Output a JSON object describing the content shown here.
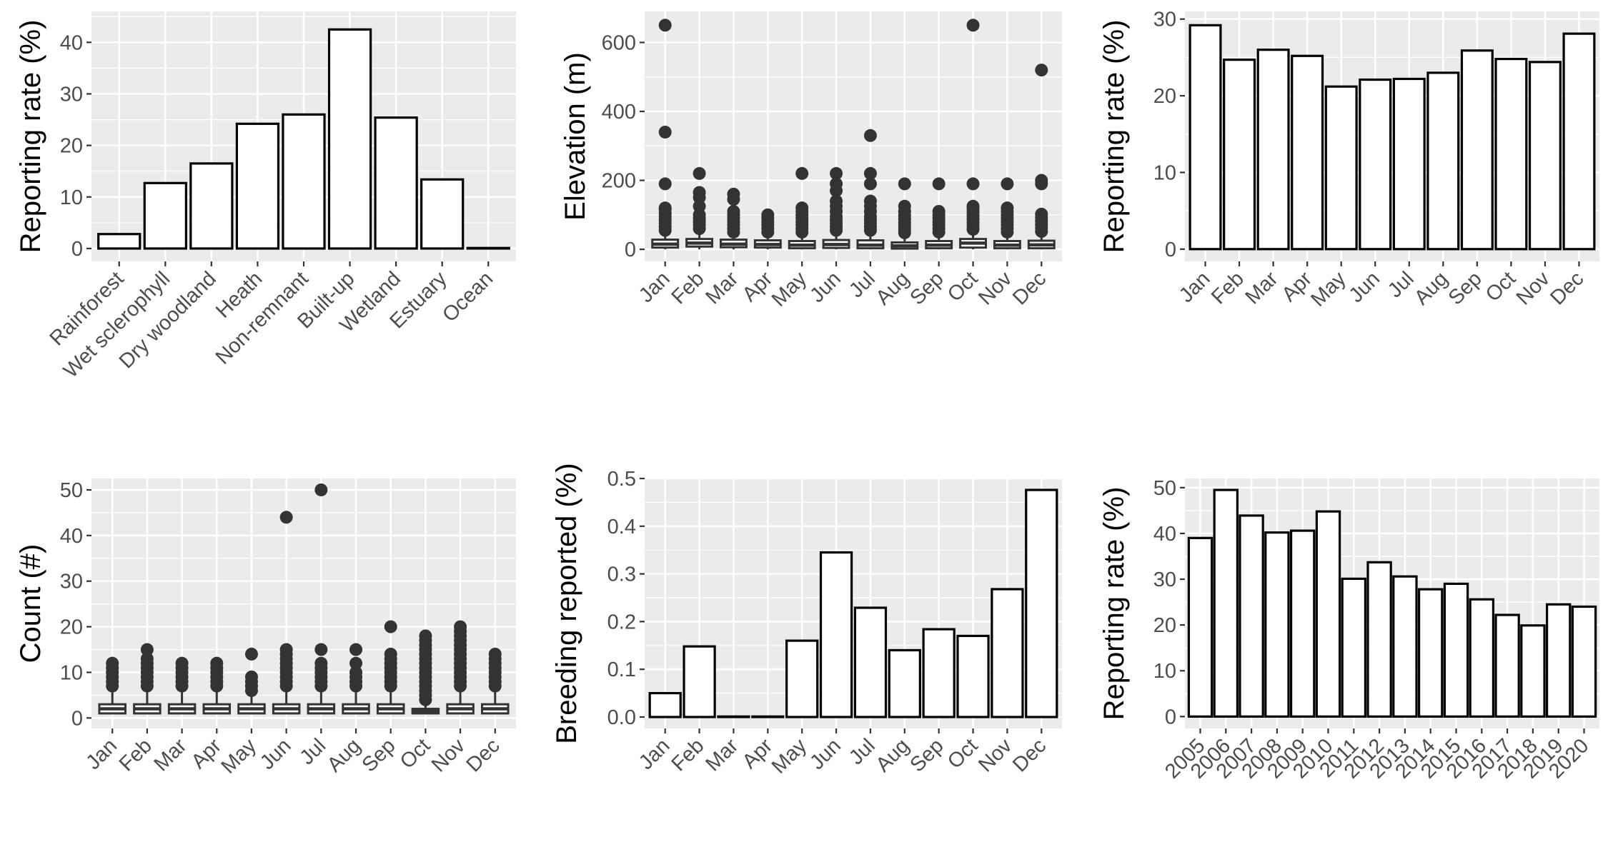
{
  "chart_data": [
    {
      "type": "bar",
      "categories": [
        "Rainforest",
        "Wet sclerophyll",
        "Dry woodland",
        "Heath",
        "Non-remnant",
        "Built-up",
        "Wetland",
        "Estuary",
        "Ocean"
      ],
      "values": [
        2.8,
        12.7,
        16.5,
        24.2,
        26.0,
        42.5,
        25.4,
        13.4,
        0.1
      ],
      "ylabel": "Reporting rate (%)",
      "xlabel": "",
      "ylim": [
        -2.5,
        46
      ],
      "yticks": [
        0,
        10,
        20,
        30,
        40
      ],
      "tick_labels": [
        "0",
        "10",
        "20",
        "30",
        "40"
      ],
      "grid": true
    },
    {
      "type": "box",
      "categories": [
        "Jan",
        "Feb",
        "Mar",
        "Apr",
        "May",
        "Jun",
        "Jul",
        "Aug",
        "Sep",
        "Oct",
        "Nov",
        "Dec"
      ],
      "series": [
        {
          "box": [
            5,
            15,
            28
          ],
          "whisker": [
            0,
            45
          ],
          "outliers": [
            55,
            65,
            75,
            85,
            95,
            105,
            115,
            120,
            190,
            340,
            650
          ]
        },
        {
          "box": [
            8,
            18,
            30
          ],
          "whisker": [
            0,
            48
          ],
          "outliers": [
            60,
            70,
            80,
            90,
            100,
            125,
            150,
            165,
            220
          ]
        },
        {
          "box": [
            6,
            15,
            28
          ],
          "whisker": [
            0,
            45
          ],
          "outliers": [
            50,
            60,
            70,
            80,
            90,
            100,
            110,
            145,
            160
          ]
        },
        {
          "box": [
            5,
            14,
            26
          ],
          "whisker": [
            0,
            44
          ],
          "outliers": [
            50,
            60,
            70,
            80,
            90,
            100
          ]
        },
        {
          "box": [
            3,
            12,
            24
          ],
          "whisker": [
            0,
            40
          ],
          "outliers": [
            50,
            60,
            70,
            80,
            90,
            100,
            110,
            120,
            220
          ]
        },
        {
          "box": [
            4,
            14,
            27
          ],
          "whisker": [
            0,
            45
          ],
          "outliers": [
            55,
            65,
            75,
            85,
            95,
            110,
            125,
            140,
            170,
            190,
            220
          ]
        },
        {
          "box": [
            3,
            12,
            26
          ],
          "whisker": [
            0,
            45
          ],
          "outliers": [
            55,
            65,
            75,
            85,
            95,
            110,
            125,
            140,
            190,
            220,
            330
          ]
        },
        {
          "box": [
            2,
            10,
            20
          ],
          "whisker": [
            0,
            38
          ],
          "outliers": [
            48,
            58,
            68,
            78,
            88,
            98,
            110,
            125,
            190
          ]
        },
        {
          "box": [
            3,
            12,
            24
          ],
          "whisker": [
            0,
            40
          ],
          "outliers": [
            50,
            60,
            70,
            80,
            90,
            100,
            110,
            190
          ]
        },
        {
          "box": [
            5,
            18,
            30
          ],
          "whisker": [
            0,
            48
          ],
          "outliers": [
            58,
            68,
            78,
            88,
            98,
            108,
            118,
            125,
            190,
            650
          ]
        },
        {
          "box": [
            3,
            12,
            24
          ],
          "whisker": [
            0,
            40
          ],
          "outliers": [
            50,
            60,
            70,
            80,
            90,
            100,
            110,
            120,
            190
          ]
        },
        {
          "box": [
            3,
            13,
            25
          ],
          "whisker": [
            0,
            42
          ],
          "outliers": [
            52,
            62,
            72,
            82,
            92,
            102,
            190,
            200,
            520
          ]
        }
      ],
      "ylabel": "Elevation (m)",
      "xlabel": "",
      "ylim": [
        -35,
        690
      ],
      "yticks": [
        0,
        200,
        400,
        600
      ],
      "tick_labels": [
        "0",
        "200",
        "400",
        "600"
      ],
      "grid": true
    },
    {
      "type": "bar",
      "categories": [
        "Jan",
        "Feb",
        "Mar",
        "Apr",
        "May",
        "Jun",
        "Jul",
        "Aug",
        "Sep",
        "Oct",
        "Nov",
        "Dec"
      ],
      "values": [
        29.2,
        24.7,
        26.0,
        25.2,
        21.2,
        22.1,
        22.2,
        23.0,
        25.9,
        24.8,
        24.4,
        28.1
      ],
      "ylabel": "Reporting rate (%)",
      "xlabel": "",
      "ylim": [
        -1.6,
        31
      ],
      "yticks": [
        0,
        10,
        20,
        30
      ],
      "tick_labels": [
        "0",
        "10",
        "20",
        "30"
      ],
      "grid": true
    },
    {
      "type": "box",
      "categories": [
        "Jan",
        "Feb",
        "Mar",
        "Apr",
        "May",
        "Jun",
        "Jul",
        "Aug",
        "Sep",
        "Oct",
        "Nov",
        "Dec"
      ],
      "series": [
        {
          "box": [
            1,
            2,
            3
          ],
          "whisker": [
            1,
            6
          ],
          "outliers": [
            7,
            8,
            9,
            10,
            11,
            12
          ]
        },
        {
          "box": [
            1,
            2,
            3
          ],
          "whisker": [
            1,
            6
          ],
          "outliers": [
            7,
            8,
            9,
            10,
            11,
            12,
            13,
            15
          ]
        },
        {
          "box": [
            1,
            2,
            3
          ],
          "whisker": [
            1,
            6
          ],
          "outliers": [
            7,
            8,
            9,
            10,
            11,
            12
          ]
        },
        {
          "box": [
            1,
            2,
            3
          ],
          "whisker": [
            1,
            6
          ],
          "outliers": [
            7,
            8,
            9,
            10,
            11,
            12
          ]
        },
        {
          "box": [
            1,
            2,
            3
          ],
          "whisker": [
            1,
            5
          ],
          "outliers": [
            6,
            7,
            8,
            9,
            14
          ]
        },
        {
          "box": [
            1,
            2,
            3
          ],
          "whisker": [
            1,
            6
          ],
          "outliers": [
            7,
            8,
            9,
            10,
            11,
            12,
            13,
            14,
            15,
            44
          ]
        },
        {
          "box": [
            1,
            2,
            3
          ],
          "whisker": [
            1,
            6
          ],
          "outliers": [
            7,
            8,
            9,
            10,
            11,
            12,
            15,
            50
          ]
        },
        {
          "box": [
            1,
            2,
            3
          ],
          "whisker": [
            1,
            6
          ],
          "outliers": [
            7,
            8,
            9,
            10,
            12,
            15
          ]
        },
        {
          "box": [
            1,
            2,
            3
          ],
          "whisker": [
            1,
            6
          ],
          "outliers": [
            7,
            8,
            9,
            10,
            11,
            12,
            13,
            14,
            20
          ]
        },
        {
          "box": [
            1,
            1.5,
            2
          ],
          "whisker": [
            1,
            3
          ],
          "outliers": [
            4,
            5,
            6,
            7,
            8,
            9,
            10,
            11,
            12,
            13,
            14,
            15,
            16,
            17,
            18
          ]
        },
        {
          "box": [
            1,
            2,
            3
          ],
          "whisker": [
            1,
            6
          ],
          "outliers": [
            7,
            8,
            9,
            10,
            11,
            12,
            13,
            14,
            15,
            16,
            17,
            18,
            19,
            20
          ]
        },
        {
          "box": [
            1,
            2,
            3
          ],
          "whisker": [
            1,
            6
          ],
          "outliers": [
            7,
            8,
            9,
            10,
            11,
            12,
            13,
            14
          ]
        }
      ],
      "ylabel": "Count (#)",
      "xlabel": "",
      "ylim": [
        -2.3,
        52.5
      ],
      "yticks": [
        0,
        10,
        20,
        30,
        40,
        50
      ],
      "tick_labels": [
        "0",
        "10",
        "20",
        "30",
        "40",
        "50"
      ],
      "grid": true
    },
    {
      "type": "bar",
      "categories": [
        "Jan",
        "Feb",
        "Mar",
        "Apr",
        "May",
        "Jun",
        "Jul",
        "Aug",
        "Sep",
        "Oct",
        "Nov",
        "Dec"
      ],
      "values": [
        0.05,
        0.148,
        0.001,
        0.001,
        0.16,
        0.345,
        0.229,
        0.14,
        0.184,
        0.17,
        0.268,
        0.476
      ],
      "ylabel": "Breeding reported (%)",
      "xlabel": "",
      "ylim": [
        -0.024,
        0.5
      ],
      "yticks": [
        0,
        0.1,
        0.2,
        0.3,
        0.4,
        0.5
      ],
      "tick_labels": [
        "0.0",
        "0.1",
        "0.2",
        "0.3",
        "0.4",
        "0.5"
      ],
      "grid": true
    },
    {
      "type": "bar",
      "categories": [
        "2005",
        "2006",
        "2007",
        "2008",
        "2009",
        "2010",
        "2011",
        "2012",
        "2013",
        "2014",
        "2015",
        "2016",
        "2017",
        "2018",
        "2019",
        "2020"
      ],
      "values": [
        39.0,
        49.5,
        43.9,
        40.2,
        40.6,
        44.8,
        30.1,
        33.7,
        30.6,
        27.8,
        29.0,
        25.6,
        22.2,
        19.9,
        24.5,
        24.0
      ],
      "ylabel": "Reporting rate (%)",
      "xlabel": "",
      "ylim": [
        -2.6,
        52
      ],
      "yticks": [
        0,
        10,
        20,
        30,
        40,
        50
      ],
      "tick_labels": [
        "0",
        "10",
        "20",
        "30",
        "40",
        "50"
      ],
      "grid": true
    }
  ]
}
